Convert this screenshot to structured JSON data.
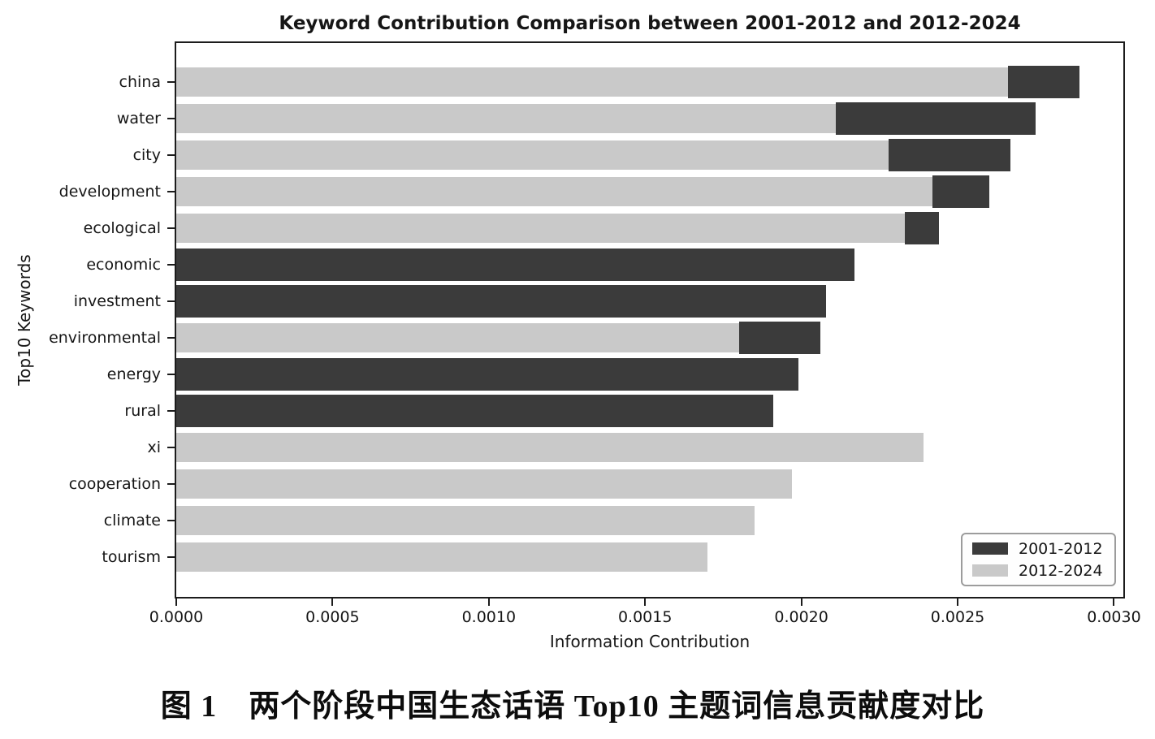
{
  "figure": {
    "caption": "图 1　两个阶段中国生态话语 Top10 主题词信息贡献度对比"
  },
  "chart_data": {
    "type": "bar",
    "orientation": "horizontal",
    "title": "Keyword Contribution Comparison between 2001-2012 and 2012-2024",
    "xlabel": "Information Contribution",
    "ylabel": "Top10 Keywords",
    "xlim": [
      0,
      0.00303
    ],
    "grid": false,
    "x_ticks": [
      "0.0000",
      "0.0005",
      "0.0010",
      "0.0015",
      "0.0020",
      "0.0025",
      "0.0030"
    ],
    "x_tick_values": [
      0,
      0.0005,
      0.001,
      0.0015,
      0.002,
      0.0025,
      0.003
    ],
    "categories": [
      "china",
      "water",
      "city",
      "development",
      "ecological",
      "economic",
      "investment",
      "environmental",
      "energy",
      "rural",
      "xi",
      "cooperation",
      "climate",
      "tourism"
    ],
    "series": [
      {
        "name": "2001-2012",
        "color": "#3b3b3b",
        "values": [
          0.00289,
          0.00275,
          0.00267,
          0.0026,
          0.00244,
          0.00217,
          0.00208,
          0.00206,
          0.00199,
          0.00191,
          null,
          null,
          null,
          null
        ]
      },
      {
        "name": "2012-2024",
        "color": "#c9c9c9",
        "values": [
          0.00266,
          0.00211,
          0.00228,
          0.00242,
          0.00233,
          null,
          null,
          0.0018,
          null,
          null,
          0.00239,
          0.00197,
          0.00185,
          0.0017
        ]
      }
    ],
    "legend": {
      "position": "lower right"
    }
  }
}
